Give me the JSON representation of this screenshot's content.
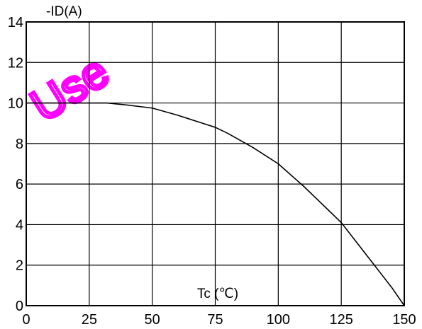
{
  "chart_data": {
    "type": "line",
    "title": "",
    "xlabel": "Tc (℃)",
    "ylabel": "-ID(A)",
    "xlim": [
      0,
      150
    ],
    "ylim": [
      0,
      14
    ],
    "xticks": [
      "0",
      "25",
      "50",
      "75",
      "100",
      "125",
      "150"
    ],
    "yticks": [
      "0",
      "2",
      "4",
      "6",
      "8",
      "10",
      "12",
      "14"
    ],
    "grid": true,
    "series": [
      {
        "x": [
          0,
          25,
          32,
          40,
          50,
          60,
          70,
          75,
          80,
          90,
          100,
          110,
          115,
          120,
          125,
          130,
          135,
          140,
          145,
          150
        ],
        "y": [
          10,
          10,
          10,
          9.9,
          9.75,
          9.4,
          9.0,
          8.8,
          8.5,
          7.8,
          7.0,
          5.9,
          5.3,
          4.7,
          4.1,
          3.3,
          2.5,
          1.7,
          0.9,
          0.0
        ],
        "color": "#000000"
      }
    ]
  },
  "watermark": {
    "text": "Use",
    "color": "#ff00ff"
  }
}
